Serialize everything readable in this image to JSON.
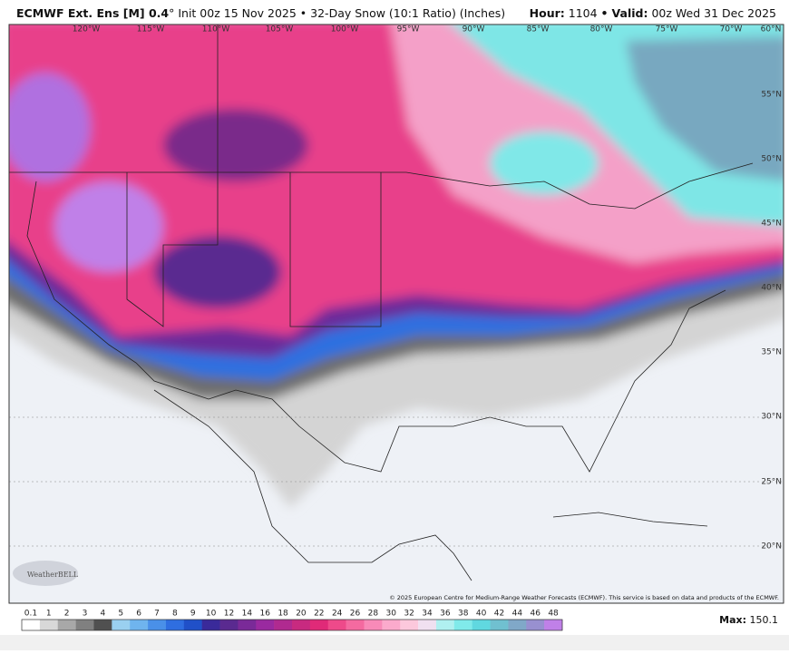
{
  "header": {
    "model": "ECMWF Ext. Ens [M] 0.4",
    "degree": "°",
    "init": "Init 00z 15 Nov 2025",
    "bullet": "•",
    "product": "32-Day Snow (10:1 Ratio) (Inches)",
    "hour_label": "Hour:",
    "hour": "1104",
    "valid_label": "Valid:",
    "valid": "00z Wed 31 Dec 2025"
  },
  "map": {
    "longitudes": [
      "120°W",
      "115°W",
      "110°W",
      "105°W",
      "100°W",
      "95°W",
      "90°W",
      "85°W",
      "80°W",
      "75°W",
      "70°W"
    ],
    "corner_label": "60°N",
    "latitudes": [
      "55°N",
      "50°N",
      "45°N",
      "40°N",
      "35°N",
      "30°N",
      "25°N",
      "20°N"
    ],
    "logo": "WeatherBELL",
    "copyright": "© 2025 European Centre for Medium-Range Weather Forecasts (ECMWF). This service is based on data and products of the ECMWF."
  },
  "legend": {
    "labels": [
      "0.1",
      "1",
      "2",
      "3",
      "4",
      "5",
      "6",
      "7",
      "8",
      "9",
      "10",
      "12",
      "14",
      "16",
      "18",
      "20",
      "22",
      "24",
      "26",
      "28",
      "30",
      "32",
      "34",
      "36",
      "38",
      "40",
      "42",
      "44",
      "46",
      "48"
    ],
    "colors": [
      "#ffffff",
      "#d8d8d8",
      "#a8a8a8",
      "#808080",
      "#505050",
      "#9ad0f0",
      "#6fb4ee",
      "#4a90e8",
      "#2f6ee0",
      "#2050c8",
      "#3a2a9a",
      "#5a2a90",
      "#7a2a98",
      "#9a2aa0",
      "#b02a90",
      "#c82a80",
      "#e02a78",
      "#ee4a8a",
      "#f46aa0",
      "#f88ab8",
      "#fbaacc",
      "#fcc8dc",
      "#f0e0f0",
      "#b0f0f0",
      "#80eaea",
      "#60d8e0",
      "#70c0d0",
      "#80a8c8",
      "#9890d0",
      "#c080e8"
    ],
    "max_label": "Max:",
    "max": "150.1"
  }
}
